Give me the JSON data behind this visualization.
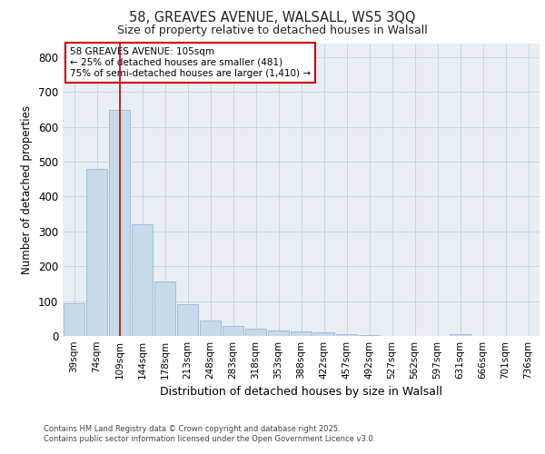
{
  "title_line1": "58, GREAVES AVENUE, WALSALL, WS5 3QQ",
  "title_line2": "Size of property relative to detached houses in Walsall",
  "xlabel": "Distribution of detached houses by size in Walsall",
  "ylabel": "Number of detached properties",
  "categories": [
    "39sqm",
    "74sqm",
    "109sqm",
    "144sqm",
    "178sqm",
    "213sqm",
    "248sqm",
    "283sqm",
    "318sqm",
    "353sqm",
    "388sqm",
    "422sqm",
    "457sqm",
    "492sqm",
    "527sqm",
    "562sqm",
    "597sqm",
    "631sqm",
    "666sqm",
    "701sqm",
    "736sqm"
  ],
  "values": [
    95,
    478,
    648,
    320,
    157,
    92,
    45,
    28,
    20,
    15,
    13,
    10,
    5,
    3,
    0,
    0,
    0,
    5,
    0,
    0,
    0
  ],
  "bar_color": "#c8daea",
  "bar_edge_color": "#9ab8d0",
  "vline_x": 2,
  "vline_color": "#cc0000",
  "annotation_title": "58 GREAVES AVENUE: 105sqm",
  "annotation_line2": "← 25% of detached houses are smaller (481)",
  "annotation_line3": "75% of semi-detached houses are larger (1,410) →",
  "annotation_box_color": "#cc0000",
  "ylim": [
    0,
    840
  ],
  "yticks": [
    0,
    100,
    200,
    300,
    400,
    500,
    600,
    700,
    800
  ],
  "background_color": "#e8eef4",
  "footer_line1": "Contains HM Land Registry data © Crown copyright and database right 2025.",
  "footer_line2": "Contains public sector information licensed under the Open Government Licence v3.0."
}
